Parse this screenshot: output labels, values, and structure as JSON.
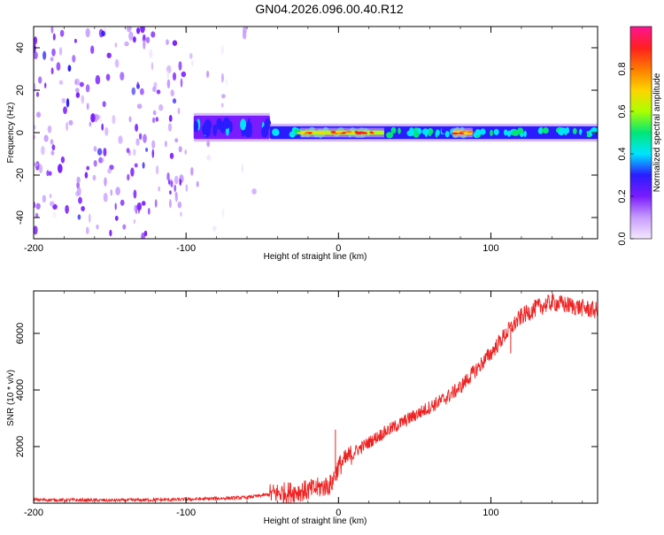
{
  "figure": {
    "title": "GN04.2026.096.00.40.R12"
  },
  "chart_data": [
    {
      "type": "heatmap",
      "name": "spectrogram",
      "xlabel": "Height of straight line (km)",
      "ylabel": "Frequency (Hz)",
      "xlim": [
        -200,
        170
      ],
      "ylim": [
        -50,
        50
      ],
      "xticks": [
        -200,
        -100,
        0,
        100
      ],
      "yticks": [
        -40,
        -20,
        0,
        20,
        40
      ],
      "grid": false,
      "colorbar": {
        "label": "Normalized spectral amplitude",
        "range": [
          0,
          1
        ],
        "ticks": [
          0.0,
          0.2,
          0.4,
          0.6,
          0.8
        ],
        "tick_labels": [
          "0.0",
          "0.2",
          "0.4",
          "0.6",
          "0.8"
        ],
        "colormap": [
          "#f4e8ff",
          "#c79cff",
          "#7a1cff",
          "#2a1cff",
          "#00e5ff",
          "#00e676",
          "#aaff00",
          "#ffd400",
          "#ff7a00",
          "#ff1f1f",
          "#ff1493"
        ]
      },
      "regions": [
        {
          "x_from": -200,
          "x_to": -100,
          "freq_from": -50,
          "freq_to": 50,
          "amplitude": 0.15,
          "description": "broadband noise"
        },
        {
          "x_from": -100,
          "x_to": -45,
          "freq_from": -50,
          "freq_to": 50,
          "amplitude": 0.05,
          "description": "fading noise"
        },
        {
          "x_from": -95,
          "x_to": -45,
          "freq_from": -3,
          "freq_to": 8,
          "amplitude": 0.35
        },
        {
          "x_from": -45,
          "x_to": 170,
          "freq_from": -3,
          "freq_to": 3,
          "amplitude": 0.45
        },
        {
          "x_from": -25,
          "x_to": 30,
          "freq_from": -1,
          "freq_to": 1,
          "amplitude": 0.85
        },
        {
          "x_from": 75,
          "x_to": 88,
          "freq_from": -1,
          "freq_to": 1,
          "amplitude": 0.95
        }
      ]
    },
    {
      "type": "line",
      "name": "snr",
      "xlabel": "Height of straight line (km)",
      "ylabel": "SNR (10 * v/v)",
      "xlim": [
        -200,
        170
      ],
      "ylim": [
        0,
        7500
      ],
      "xticks": [
        -200,
        -100,
        0,
        100
      ],
      "yticks": [
        2000,
        4000,
        6000
      ],
      "grid": false,
      "color": "#ee2222",
      "series": [
        {
          "name": "SNR",
          "x": [
            -200,
            -150,
            -100,
            -60,
            -40,
            -20,
            -5,
            0,
            10,
            30,
            50,
            70,
            80,
            90,
            100,
            110,
            120,
            130,
            140,
            150,
            170
          ],
          "values": [
            120,
            100,
            130,
            200,
            350,
            450,
            650,
            1300,
            1800,
            2500,
            3100,
            3700,
            4100,
            4700,
            5300,
            6000,
            6600,
            6900,
            7100,
            7000,
            6800
          ]
        }
      ],
      "spikes": [
        {
          "x": -2,
          "value": 2600
        },
        {
          "x": 113,
          "value": 5300
        }
      ]
    }
  ]
}
